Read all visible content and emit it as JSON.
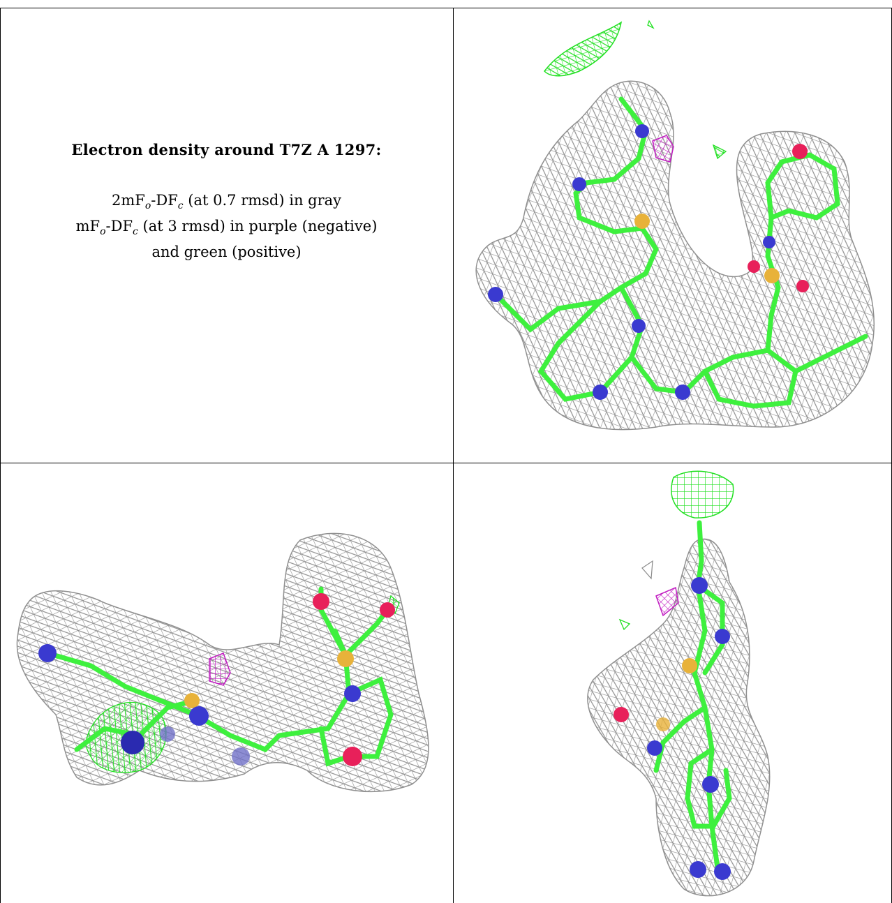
{
  "caption": {
    "title": "Electron density around T7Z A 1297:",
    "line1_main": "2mF",
    "line1_sub_o": "o",
    "line1_mid": "-DF",
    "line1_sub_c": "c",
    "line1_tail": " (at 0.7 rmsd) in gray",
    "line2_main": "mF",
    "line2_sub_o": "o",
    "line2_mid": "-DF",
    "line2_sub_c": "c",
    "line2_tail": " (at 3 rmsd) in purple (negative)",
    "line3": "and green (positive)"
  },
  "colors": {
    "mesh_2fofc": "#8a8a8a",
    "mesh_positive": "#22e022",
    "mesh_negative": "#c21ec2",
    "carbon": "#3ef03e",
    "nitrogen": "#3a3ad0",
    "oxygen": "#e8205a",
    "sulfur": "#e8b23a"
  },
  "panels": [
    {
      "id": "top-right-view",
      "content": "ligand stick model with density mesh, view 1"
    },
    {
      "id": "bottom-left-view",
      "content": "ligand stick model with density mesh, view 2"
    },
    {
      "id": "bottom-right-view",
      "content": "ligand stick model with density mesh, view 3"
    }
  ]
}
